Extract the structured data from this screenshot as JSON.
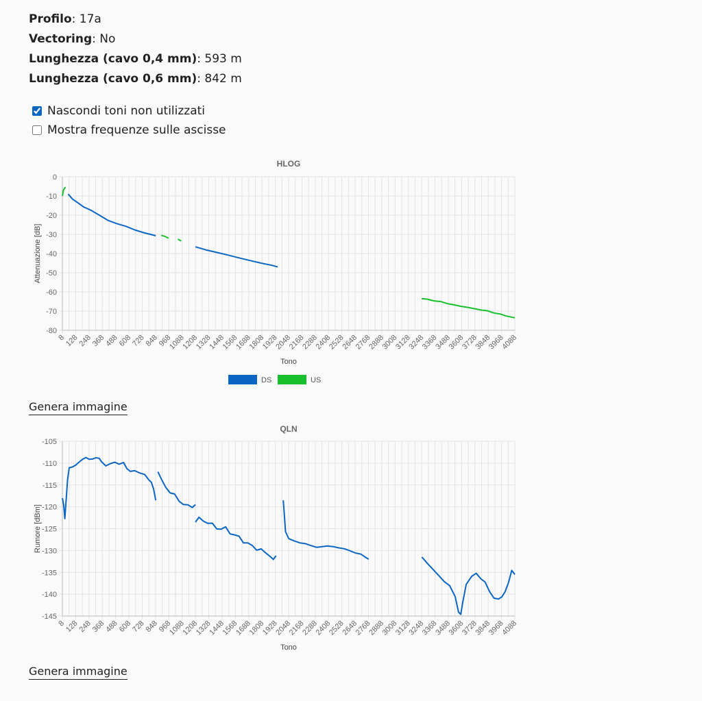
{
  "info": {
    "profilo_label": "Profilo",
    "profilo_value": "17a",
    "vectoring_label": "Vectoring",
    "vectoring_value": "No",
    "len04_label": "Lunghezza (cavo 0,4 mm)",
    "len04_value": "593 m",
    "len06_label": "Lunghezza (cavo 0,6 mm)",
    "len06_value": "842 m"
  },
  "options": {
    "hide_unused": {
      "label": "Nascondi toni non utilizzati",
      "checked": true
    },
    "show_freq": {
      "label": "Mostra frequenze sulle ascisse",
      "checked": false
    }
  },
  "generate_label": "Genera immagine",
  "colors": {
    "ds": "#0a66c2",
    "us": "#17bf2b",
    "grid": "#e3e3e3",
    "axis": "#666666"
  },
  "chart_data": [
    {
      "type": "line",
      "title": "HLOG",
      "xlabel": "Tono",
      "ylabel": "Attenuazione [dB]",
      "xlim": [
        8,
        4088
      ],
      "ylim": [
        -80,
        0
      ],
      "yticks": [
        0,
        -10,
        -20,
        -30,
        -40,
        -50,
        -60,
        -70,
        -80
      ],
      "xticks": [
        8,
        128,
        248,
        368,
        488,
        608,
        728,
        848,
        968,
        1088,
        1208,
        1328,
        1448,
        1568,
        1688,
        1808,
        1928,
        2048,
        2168,
        2288,
        2408,
        2528,
        2648,
        2768,
        2888,
        3008,
        3128,
        3248,
        3368,
        3488,
        3608,
        3728,
        3848,
        3968,
        4088
      ],
      "legend": [
        {
          "name": "DS",
          "color": "#0a66c2"
        },
        {
          "name": "US",
          "color": "#17bf2b"
        }
      ],
      "legend_position": "bottom",
      "series": [
        {
          "name": "DS",
          "color": "#0a66c2",
          "segments": [
            [
              [
                60,
                -9
              ],
              [
                100,
                -11.5
              ],
              [
                140,
                -13.5
              ],
              [
                200,
                -15.5
              ],
              [
                260,
                -17.5
              ],
              [
                340,
                -20
              ],
              [
                420,
                -22.5
              ],
              [
                500,
                -24.5
              ],
              [
                580,
                -26
              ],
              [
                660,
                -27.5
              ],
              [
                740,
                -29
              ],
              [
                850,
                -30.7
              ]
            ],
            [
              [
                1208,
                -36.5
              ],
              [
                1300,
                -38
              ],
              [
                1400,
                -39.5
              ],
              [
                1500,
                -41
              ],
              [
                1600,
                -42.5
              ],
              [
                1700,
                -43.8
              ],
              [
                1800,
                -45
              ],
              [
                1900,
                -46
              ],
              [
                1950,
                -47
              ]
            ]
          ]
        },
        {
          "name": "US",
          "color": "#17bf2b",
          "segments": [
            [
              [
                8,
                -10
              ],
              [
                18,
                -7
              ],
              [
                24,
                -6.5
              ],
              [
                30,
                -5.5
              ],
              [
                38,
                -5.5
              ]
            ],
            [
              [
                900,
                -30.5
              ],
              [
                935,
                -31.2
              ],
              [
                965,
                -32
              ]
            ],
            [
              [
                1050,
                -32.5
              ],
              [
                1080,
                -33.5
              ]
            ],
            [
              [
                3248,
                -63.5
              ],
              [
                3300,
                -64
              ],
              [
                3360,
                -64.5
              ],
              [
                3420,
                -65.2
              ],
              [
                3480,
                -66
              ],
              [
                3540,
                -66.8
              ],
              [
                3600,
                -67.5
              ],
              [
                3660,
                -68
              ],
              [
                3720,
                -68.8
              ],
              [
                3780,
                -69.3
              ],
              [
                3840,
                -70
              ],
              [
                3900,
                -70.8
              ],
              [
                3960,
                -71.8
              ],
              [
                4000,
                -72.3
              ],
              [
                4040,
                -72.8
              ],
              [
                4088,
                -73.5
              ]
            ]
          ]
        }
      ]
    },
    {
      "type": "line",
      "title": "QLN",
      "xlabel": "Tono",
      "ylabel": "Rumore [dBm]",
      "xlim": [
        8,
        4088
      ],
      "ylim": [
        -145,
        -105
      ],
      "yticks": [
        -105,
        -110,
        -115,
        -120,
        -125,
        -130,
        -135,
        -140,
        -145
      ],
      "xticks": [
        8,
        128,
        248,
        368,
        488,
        608,
        728,
        848,
        968,
        1088,
        1208,
        1328,
        1448,
        1568,
        1688,
        1808,
        1928,
        2048,
        2168,
        2288,
        2408,
        2528,
        2648,
        2768,
        2888,
        3008,
        3128,
        3248,
        3368,
        3488,
        3608,
        3728,
        3848,
        3968,
        4088
      ],
      "series": [
        {
          "name": "DS",
          "color": "#0a66c2",
          "segments": [
            [
              [
                8,
                -118
              ],
              [
                20,
                -120
              ],
              [
                30,
                -122.5
              ],
              [
                40,
                -119
              ],
              [
                55,
                -114
              ],
              [
                70,
                -111.5
              ],
              [
                100,
                -111
              ],
              [
                130,
                -110
              ],
              [
                160,
                -109.5
              ],
              [
                190,
                -109.5
              ],
              [
                220,
                -109
              ],
              [
                250,
                -108.8
              ],
              [
                280,
                -108.7
              ],
              [
                310,
                -109
              ],
              [
                340,
                -109.3
              ],
              [
                360,
                -110
              ],
              [
                400,
                -110.2
              ],
              [
                440,
                -110.3
              ],
              [
                480,
                -110
              ],
              [
                520,
                -109.8
              ],
              [
                560,
                -110.2
              ],
              [
                590,
                -111
              ],
              [
                620,
                -111.5
              ],
              [
                660,
                -111.8
              ],
              [
                700,
                -112.5
              ],
              [
                750,
                -113
              ],
              [
                790,
                -113.5
              ],
              [
                810,
                -114
              ],
              [
                830,
                -116
              ],
              [
                850,
                -118.5
              ]
            ],
            [
              [
                870,
                -112
              ],
              [
                900,
                -114
              ],
              [
                940,
                -115.5
              ],
              [
                980,
                -116.5
              ],
              [
                1020,
                -117.5
              ],
              [
                1060,
                -118.5
              ],
              [
                1100,
                -119.3
              ],
              [
                1140,
                -120
              ],
              [
                1180,
                -119.8
              ],
              [
                1208,
                -119.5
              ]
            ],
            [
              [
                1208,
                -123.5
              ],
              [
                1240,
                -122.8
              ],
              [
                1280,
                -123.2
              ],
              [
                1320,
                -123.5
              ],
              [
                1360,
                -124.2
              ],
              [
                1400,
                -124.8
              ],
              [
                1440,
                -125
              ],
              [
                1480,
                -125
              ],
              [
                1520,
                -125.8
              ],
              [
                1560,
                -126.5
              ],
              [
                1600,
                -127
              ],
              [
                1640,
                -127.8
              ],
              [
                1680,
                -128.5
              ],
              [
                1720,
                -129
              ],
              [
                1760,
                -129.5
              ],
              [
                1800,
                -130
              ],
              [
                1840,
                -130.5
              ],
              [
                1880,
                -131
              ],
              [
                1910,
                -131.7
              ],
              [
                1935,
                -131.2
              ]
            ],
            [
              [
                2000,
                -118.5
              ],
              [
                2010,
                -122
              ],
              [
                2020,
                -126
              ],
              [
                2050,
                -127
              ],
              [
                2100,
                -127.4
              ],
              [
                2150,
                -127.8
              ],
              [
                2200,
                -128
              ],
              [
                2250,
                -128.5
              ],
              [
                2300,
                -129
              ],
              [
                2350,
                -129
              ],
              [
                2400,
                -129
              ],
              [
                2450,
                -129.3
              ],
              [
                2500,
                -129.7
              ],
              [
                2550,
                -130
              ],
              [
                2600,
                -130.5
              ],
              [
                2650,
                -131
              ],
              [
                2700,
                -131.2
              ],
              [
                2740,
                -131.5
              ],
              [
                2770,
                -132
              ]
            ],
            [
              [
                3250,
                -131.5
              ],
              [
                3300,
                -133
              ],
              [
                3350,
                -134.5
              ],
              [
                3400,
                -136
              ],
              [
                3450,
                -137.5
              ],
              [
                3500,
                -138.5
              ],
              [
                3550,
                -141
              ],
              [
                3580,
                -144
              ],
              [
                3600,
                -145
              ],
              [
                3620,
                -142
              ],
              [
                3650,
                -138
              ],
              [
                3700,
                -136
              ],
              [
                3740,
                -135.5
              ],
              [
                3780,
                -136
              ],
              [
                3820,
                -137.5
              ],
              [
                3860,
                -139.5
              ],
              [
                3900,
                -140.5
              ],
              [
                3940,
                -141.5
              ],
              [
                3970,
                -140.5
              ],
              [
                4000,
                -139
              ],
              [
                4030,
                -137.5
              ],
              [
                4060,
                -135
              ],
              [
                4088,
                -135.5
              ]
            ]
          ]
        }
      ]
    }
  ]
}
